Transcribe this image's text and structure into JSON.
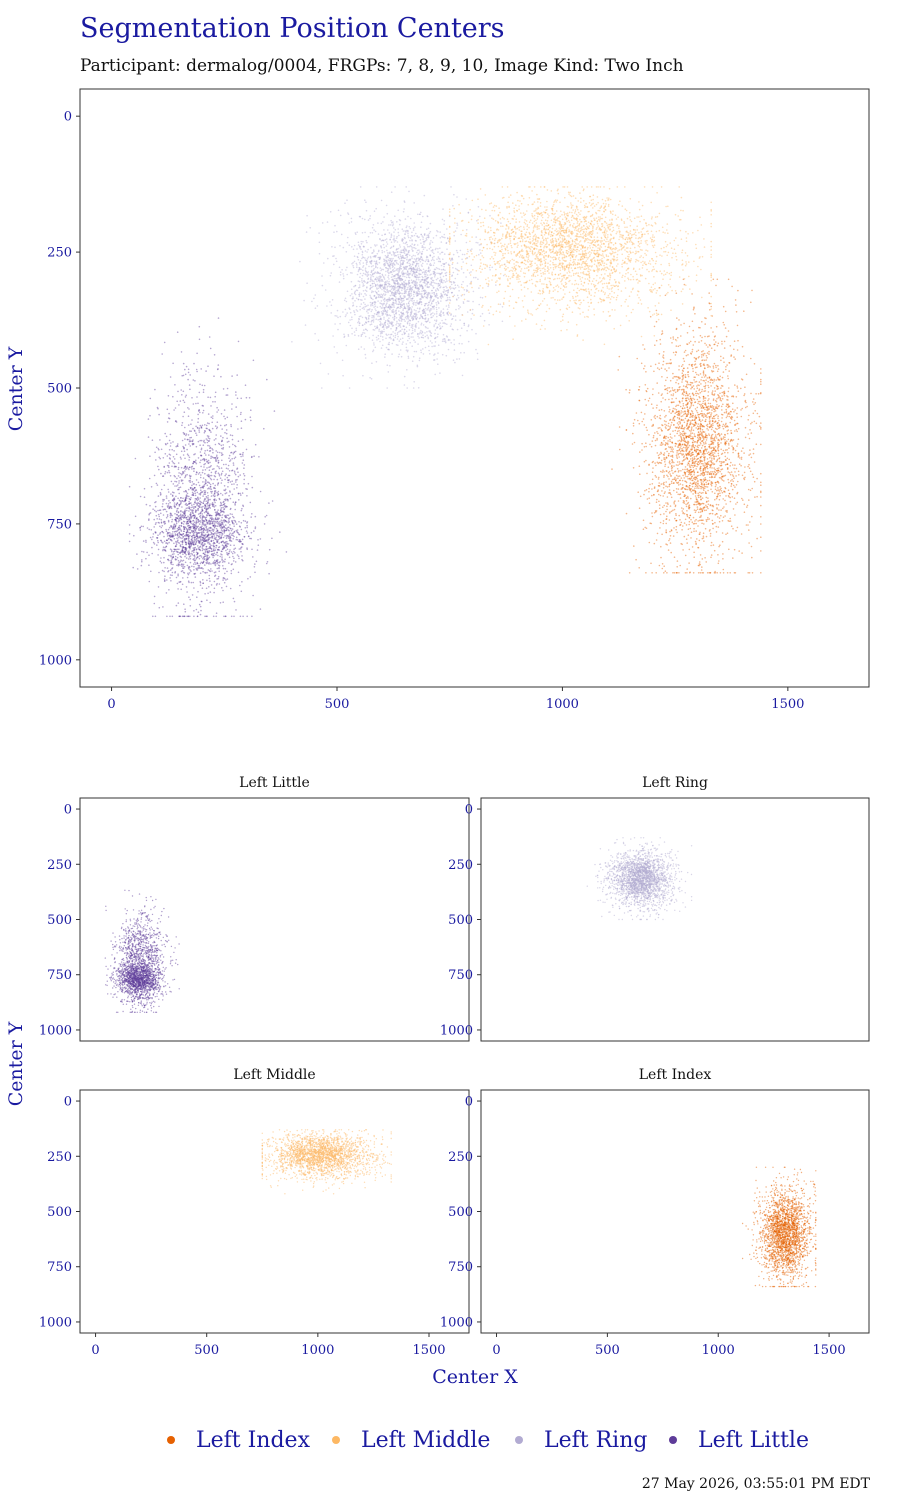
{
  "chart_data": {
    "type": "scatter",
    "title": "Segmentation Position Centers",
    "subtitle": "Participant: dermalog/0004, FRGPs: 7, 8, 9, 10, Image Kind: Two Inch",
    "xlabel": "Center X",
    "ylabel": "Center Y",
    "timestamp": "27 May 2026, 03:55:01 PM EDT",
    "xlim": [
      -70,
      1680
    ],
    "ylim": [
      1050,
      -50
    ],
    "y_reversed": true,
    "x_ticks": [
      "0",
      "500",
      "1000",
      "1500"
    ],
    "y_ticks": [
      "0",
      "250",
      "500",
      "750",
      "1000"
    ],
    "x_tick_values": [
      0,
      500,
      1000,
      1500
    ],
    "y_tick_values": [
      0,
      250,
      500,
      750,
      1000
    ],
    "grid": false,
    "legend_position": "bottom",
    "combined_panel": {
      "series_order": [
        "Left Little",
        "Left Ring",
        "Left Middle",
        "Left Index"
      ]
    },
    "facets": [
      {
        "title": "Left Little",
        "series": "Left Little"
      },
      {
        "title": "Left Ring",
        "series": "Left Ring"
      },
      {
        "title": "Left Middle",
        "series": "Left Middle"
      },
      {
        "title": "Left Index",
        "series": "Left Index"
      }
    ],
    "series": [
      {
        "name": "Left Index",
        "color": "#e66101",
        "center": [
          1300,
          600
        ],
        "spread": [
          65,
          120
        ],
        "core": [
          1300,
          600
        ],
        "core_spread": [
          45,
          80
        ],
        "x_range": [
          1110,
          1440
        ],
        "y_range": [
          300,
          840
        ]
      },
      {
        "name": "Left Middle",
        "color": "#fdb863",
        "center": [
          1030,
          260
        ],
        "spread": [
          130,
          55
        ],
        "core": [
          1000,
          230
        ],
        "core_spread": [
          90,
          40
        ],
        "x_range": [
          750,
          1330
        ],
        "y_range": [
          130,
          420
        ]
      },
      {
        "name": "Left Ring",
        "color": "#b2abd2",
        "center": [
          650,
          320
        ],
        "spread": [
          80,
          70
        ],
        "core": [
          650,
          310
        ],
        "core_spread": [
          55,
          50
        ],
        "x_range": [
          400,
          880
        ],
        "y_range": [
          130,
          500
        ]
      },
      {
        "name": "Left Little",
        "color": "#5e3c99",
        "center": [
          200,
          700
        ],
        "spread": [
          55,
          110
        ],
        "core": [
          190,
          770
        ],
        "core_spread": [
          50,
          35
        ],
        "x_range": [
          40,
          430
        ],
        "y_range": [
          180,
          920
        ]
      }
    ],
    "legend": [
      "Left Index",
      "Left Middle",
      "Left Ring",
      "Left Little"
    ]
  }
}
